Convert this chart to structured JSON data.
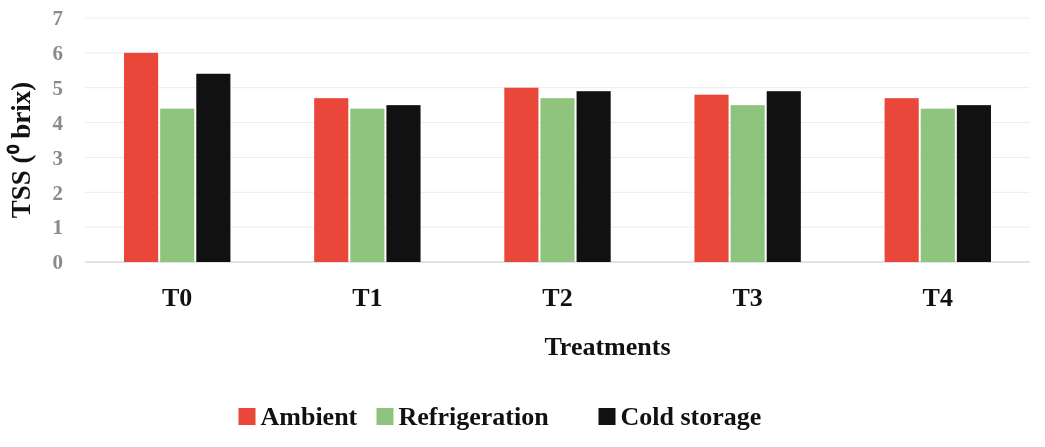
{
  "chart_data": {
    "type": "bar",
    "xlabel": "Treatments",
    "ylabel": "TSS (⁰ brix)",
    "categories": [
      "T0",
      "T1",
      "T2",
      "T3",
      "T4"
    ],
    "series": [
      {
        "name": "Ambient",
        "color": "#e8473a",
        "values": [
          6.0,
          4.7,
          5.0,
          4.8,
          4.7
        ]
      },
      {
        "name": "Refrigeration",
        "color": "#8fc47f",
        "values": [
          4.4,
          4.4,
          4.7,
          4.5,
          4.4
        ]
      },
      {
        "name": "Cold storage",
        "color": "#111111",
        "values": [
          5.4,
          4.5,
          4.9,
          4.9,
          4.5
        ]
      }
    ],
    "ylim": [
      0,
      7
    ],
    "yticks": [
      0,
      1,
      2,
      3,
      4,
      5,
      6,
      7
    ],
    "grid": "y",
    "legend": "bottom"
  }
}
